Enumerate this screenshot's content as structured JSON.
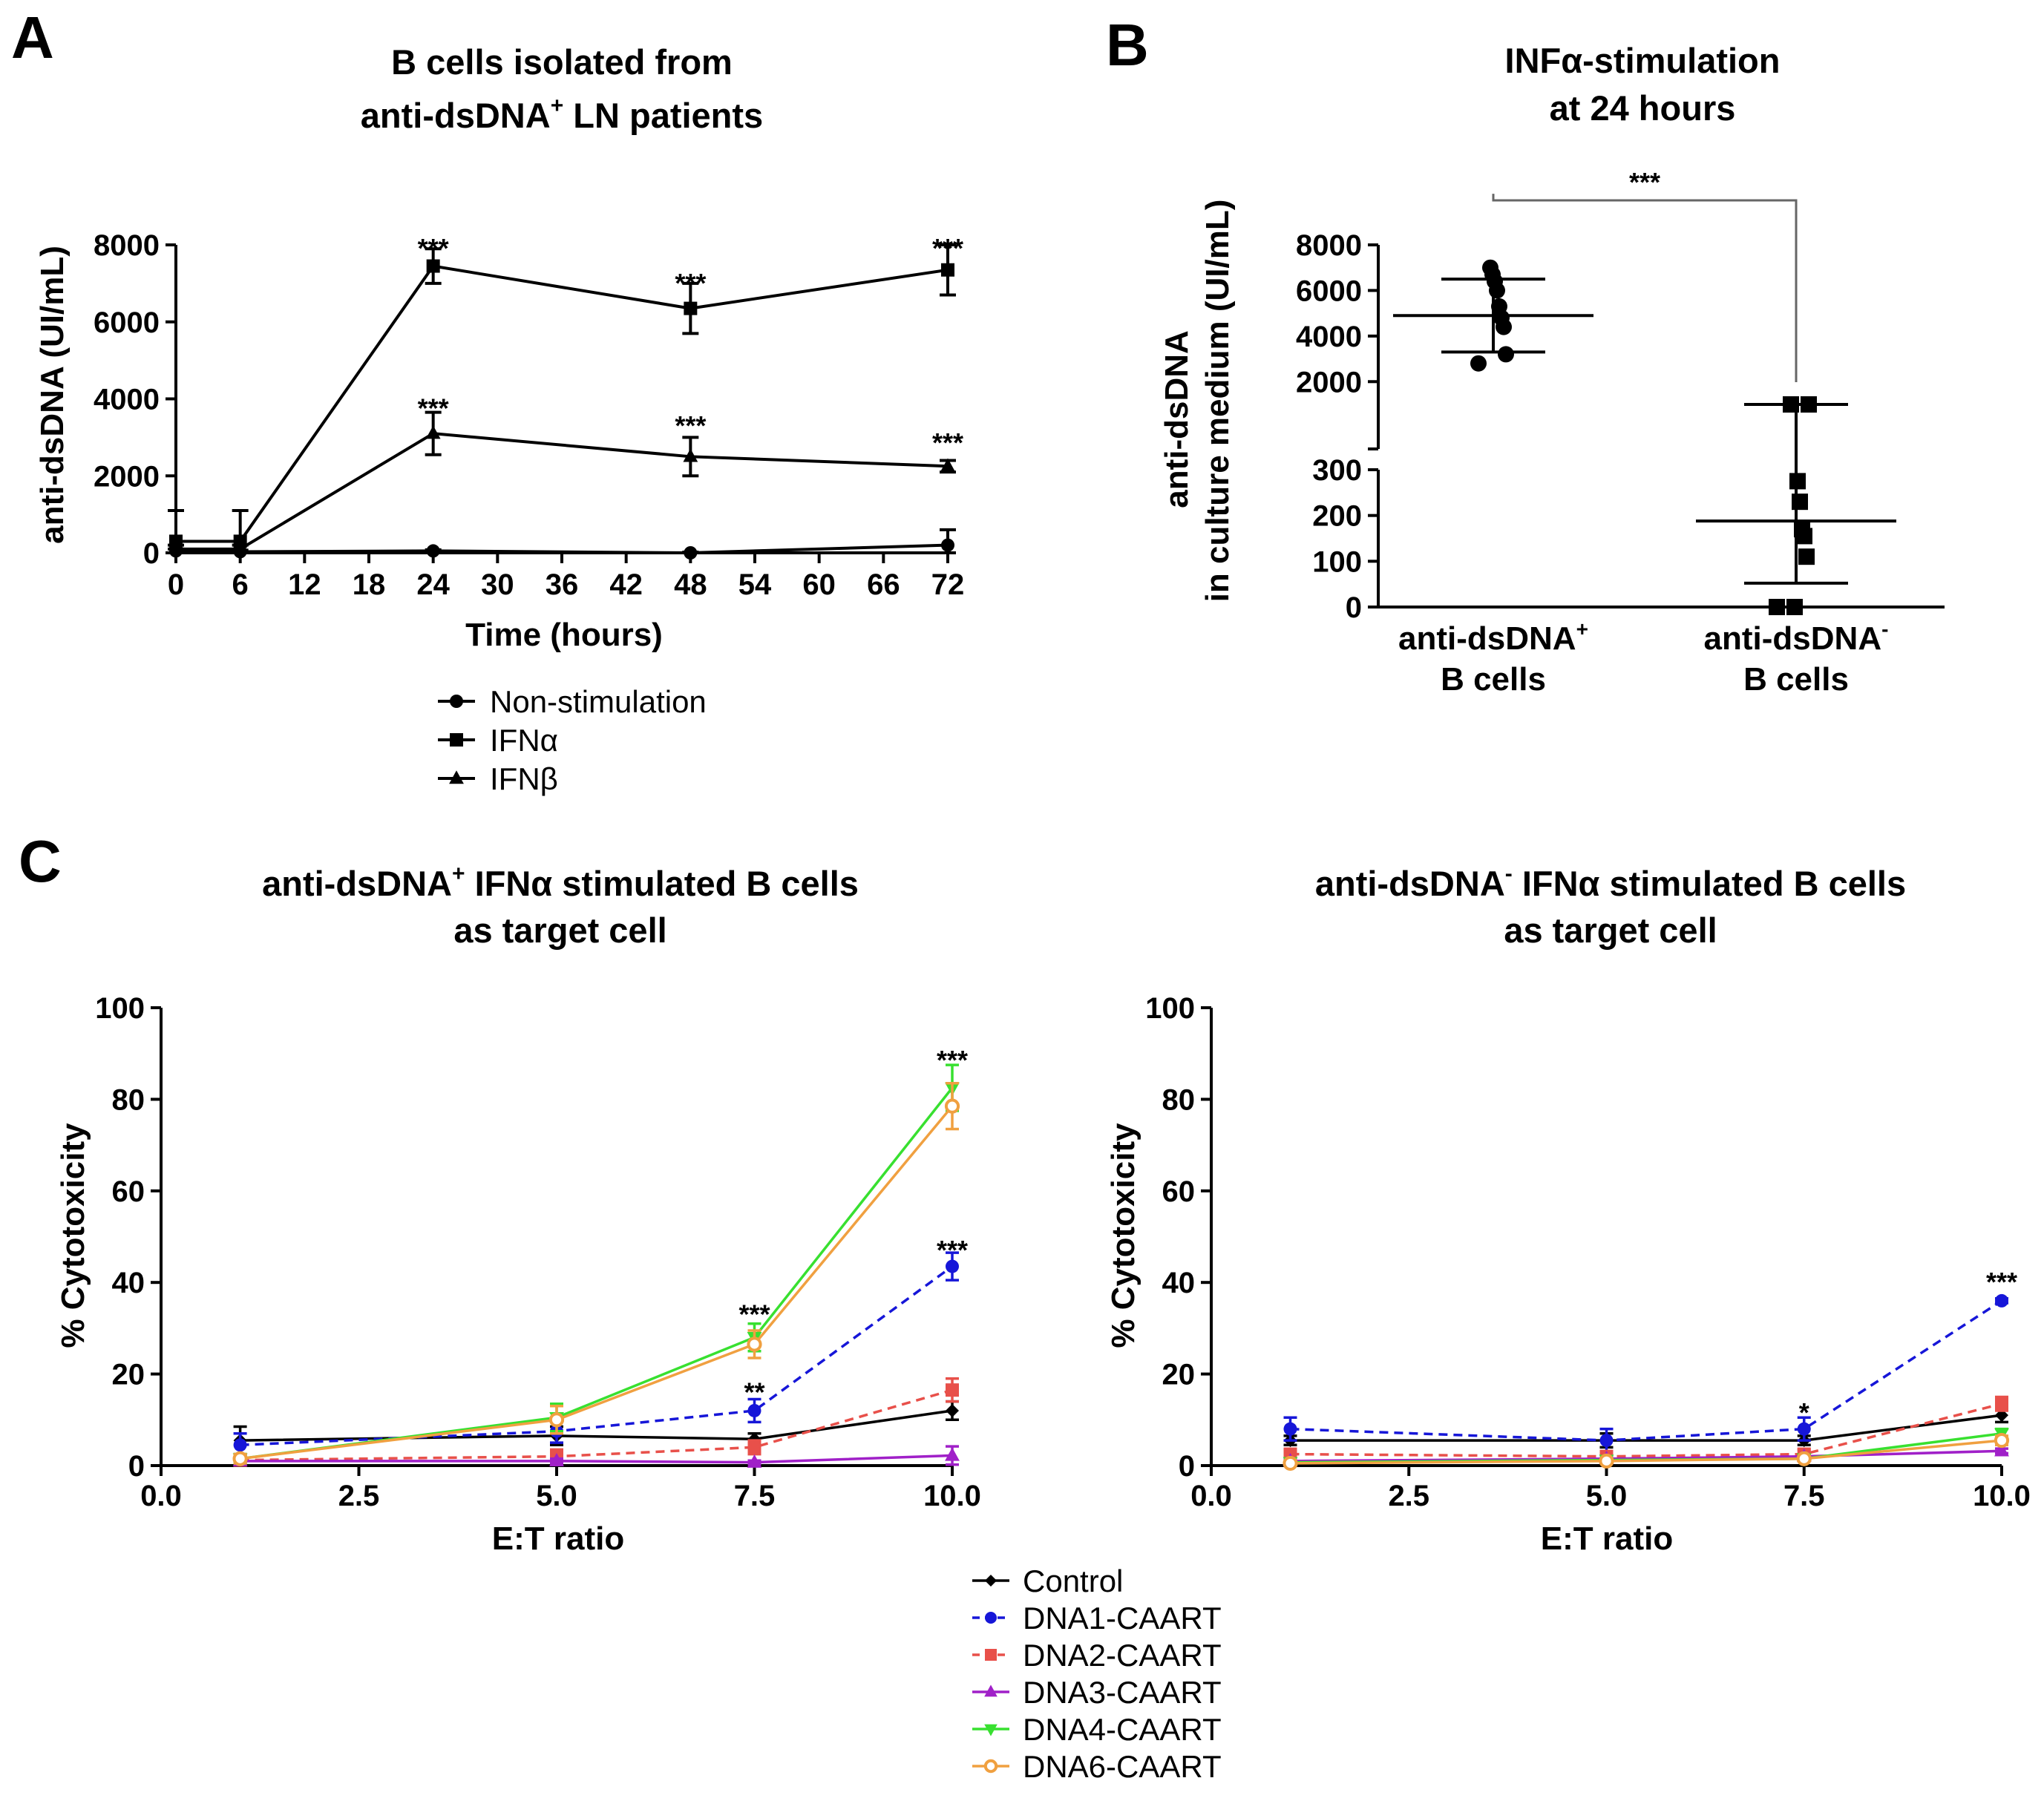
{
  "panels": {
    "A": {
      "label": "A",
      "title_line1": "B cells isolated from",
      "title_line2_pre": "anti-dsDNA",
      "title_line2_sup": "+",
      "title_line2_post": " LN patients",
      "ylabel": "anti-dsDNA  (UI/mL)",
      "xlabel": "Time (hours)",
      "legend": [
        "Non-stimulation",
        "IFNα",
        "IFNβ"
      ]
    },
    "B": {
      "label": "B",
      "title_line1": "INFα-stimulation",
      "title_line2": "at 24 hours",
      "ylabel_line1": "anti-dsDNA",
      "ylabel_line2": "in culture medium (UI/mL)",
      "cat1_pre": "anti-dsDNA",
      "cat1_sup": "+",
      "cat2_pre": "anti-dsDNA",
      "cat2_sup": "-",
      "cat_line2": "B cells",
      "bracket_label": "***"
    },
    "C": {
      "label": "C",
      "left_title_line1_pre": "anti-dsDNA",
      "left_title_line1_sup": "+",
      "left_title_line1_post": " IFNα stimulated B cells",
      "right_title_line1_pre": "anti-dsDNA",
      "right_title_line1_sup": "-",
      "right_title_line1_post": " IFNα stimulated B cells",
      "title_line2": "as target cell",
      "ylabel": "% Cytotoxicity",
      "xlabel": "E:T ratio",
      "legend": [
        "Control",
        "DNA1-CAART",
        "DNA2-CAART",
        "DNA3-CAART",
        "DNA4-CAART",
        "DNA6-CAART"
      ]
    }
  },
  "chart_data": [
    {
      "panel": "A",
      "type": "line",
      "xlabel": "Time (hours)",
      "ylabel": "anti-dsDNA  (UI/mL)",
      "xlim": [
        0,
        72
      ],
      "ylim": [
        0,
        8000
      ],
      "x_ticks": [
        0,
        6,
        12,
        18,
        24,
        30,
        36,
        42,
        48,
        54,
        60,
        66,
        72
      ],
      "y_ticks": [
        0,
        2000,
        4000,
        6000,
        8000
      ],
      "legend_position": "bottom",
      "series": [
        {
          "name": "Non-stimulation",
          "marker": "circle",
          "x": [
            0,
            6,
            24,
            48,
            72
          ],
          "y": [
            50,
            30,
            50,
            0,
            200
          ],
          "err": [
            50,
            40,
            30,
            20,
            400
          ]
        },
        {
          "name": "IFNα",
          "marker": "square",
          "x": [
            0,
            6,
            24,
            48,
            72
          ],
          "y": [
            300,
            300,
            7450,
            6350,
            7350
          ],
          "err": [
            800,
            800,
            450,
            650,
            650
          ]
        },
        {
          "name": "IFNβ",
          "marker": "triangle",
          "x": [
            0,
            6,
            24,
            48,
            72
          ],
          "y": [
            100,
            100,
            3100,
            2500,
            2250
          ],
          "err": [
            100,
            100,
            550,
            500,
            150
          ]
        }
      ],
      "annotations": [
        {
          "x": 24,
          "y": 7900,
          "text": "***"
        },
        {
          "x": 48,
          "y": 7000,
          "text": "***"
        },
        {
          "x": 72,
          "y": 7900,
          "text": "***"
        },
        {
          "x": 24,
          "y": 3750,
          "text": "***"
        },
        {
          "x": 48,
          "y": 3300,
          "text": "***"
        },
        {
          "x": 72,
          "y": 2850,
          "text": "***"
        }
      ]
    },
    {
      "panel": "B",
      "type": "scatter",
      "categories": [
        "anti-dsDNA+ B cells",
        "anti-dsDNA- B cells"
      ],
      "y_ticks_upper": [
        2000,
        4000,
        6000,
        8000
      ],
      "y_ticks_lower": [
        0,
        100,
        200,
        300
      ],
      "y_axis_break": [
        300,
        1000
      ],
      "groups": [
        {
          "category": "anti-dsDNA+ B cells",
          "marker": "circle",
          "values": [
            2800,
            3200,
            4400,
            4800,
            5300,
            6000,
            6400,
            6700,
            7000
          ],
          "mean": 4900,
          "sd_low": 3300,
          "sd_high": 6500
        },
        {
          "category": "anti-dsDNA- B cells",
          "marker": "square",
          "values": [
            0,
            0,
            110,
            155,
            170,
            230,
            275,
            1000,
            1000
          ],
          "mean": 188,
          "sd_low": 52,
          "sd_high": 1000
        }
      ],
      "comparison": {
        "from": "anti-dsDNA+ B cells",
        "to": "anti-dsDNA- B cells",
        "label": "***"
      }
    },
    {
      "panel": "C-left",
      "type": "line",
      "xlabel": "E:T ratio",
      "ylabel": "% Cytotoxicity",
      "xlim": [
        0,
        10
      ],
      "ylim": [
        0,
        100
      ],
      "x_ticks": [
        0.0,
        2.5,
        5.0,
        7.5,
        10.0
      ],
      "y_ticks": [
        0,
        20,
        40,
        60,
        80,
        100
      ],
      "series": [
        {
          "name": "Control",
          "color": "#000000",
          "dash": false,
          "marker": "diamond",
          "x": [
            1,
            5,
            7.5,
            10
          ],
          "y": [
            5.5,
            6.5,
            5.8,
            12
          ],
          "err": [
            3,
            2,
            1.2,
            2
          ]
        },
        {
          "name": "DNA1-CAART",
          "color": "#1616d8",
          "dash": true,
          "marker": "circle",
          "x": [
            1,
            5,
            7.5,
            10
          ],
          "y": [
            4.5,
            7.5,
            12,
            43.5
          ],
          "err": [
            2.5,
            2.5,
            2.5,
            3
          ]
        },
        {
          "name": "DNA2-CAART",
          "color": "#e8504a",
          "dash": true,
          "marker": "square",
          "x": [
            1,
            5,
            7.5,
            10
          ],
          "y": [
            1.2,
            2,
            4,
            16.5
          ],
          "err": [
            0.5,
            1.5,
            1.5,
            2.5
          ]
        },
        {
          "name": "DNA3-CAART",
          "color": "#a020c8",
          "dash": false,
          "marker": "triangle",
          "x": [
            1,
            5,
            7.5,
            10
          ],
          "y": [
            1,
            1,
            0.7,
            2.2
          ],
          "err": [
            0.5,
            0.5,
            0.4,
            2
          ]
        },
        {
          "name": "DNA4-CAART",
          "color": "#38e030",
          "dash": false,
          "marker": "triangle-down",
          "x": [
            1,
            5,
            7.5,
            10
          ],
          "y": [
            1.5,
            10.5,
            28,
            82.5
          ],
          "err": [
            1,
            3,
            3,
            5
          ]
        },
        {
          "name": "DNA6-CAART",
          "color": "#f0a040",
          "dash": false,
          "marker": "open-circle",
          "x": [
            1,
            5,
            7.5,
            10
          ],
          "y": [
            1.5,
            10,
            26.5,
            78.5
          ],
          "err": [
            1,
            3,
            3,
            5
          ]
        }
      ],
      "annotations": [
        {
          "x": 7.5,
          "y": 33,
          "text": "***"
        },
        {
          "x": 7.5,
          "y": 16,
          "text": "**"
        },
        {
          "x": 10,
          "y": 88.5,
          "text": "***"
        },
        {
          "x": 10,
          "y": 47,
          "text": "***"
        }
      ]
    },
    {
      "panel": "C-right",
      "type": "line",
      "xlabel": "E:T ratio",
      "ylabel": "% Cytotoxicity",
      "xlim": [
        0,
        10
      ],
      "ylim": [
        0,
        100
      ],
      "x_ticks": [
        0.0,
        2.5,
        5.0,
        7.5,
        10.0
      ],
      "y_ticks": [
        0,
        20,
        40,
        60,
        80,
        100
      ],
      "series": [
        {
          "name": "Control",
          "color": "#000000",
          "dash": false,
          "marker": "diamond",
          "x": [
            1,
            5,
            7.5,
            10
          ],
          "y": [
            5.5,
            5.5,
            5.5,
            11
          ],
          "err": [
            1,
            1.5,
            1,
            1.5
          ]
        },
        {
          "name": "DNA1-CAART",
          "color": "#1616d8",
          "dash": true,
          "marker": "circle",
          "x": [
            1,
            5,
            7.5,
            10
          ],
          "y": [
            8,
            5.5,
            8,
            36
          ],
          "err": [
            2.5,
            2.5,
            2.5,
            0.5
          ]
        },
        {
          "name": "DNA2-CAART",
          "color": "#e8504a",
          "dash": true,
          "marker": "square",
          "x": [
            1,
            5,
            7.5,
            10
          ],
          "y": [
            2.5,
            2,
            2.5,
            13.5
          ],
          "err": [
            1,
            0.5,
            1,
            1.5
          ]
        },
        {
          "name": "DNA3-CAART",
          "color": "#a020c8",
          "dash": false,
          "marker": "triangle",
          "x": [
            1,
            5,
            7.5,
            10
          ],
          "y": [
            1,
            1.5,
            2,
            3.2
          ],
          "err": [
            0.3,
            0.3,
            0.3,
            0.5
          ]
        },
        {
          "name": "DNA4-CAART",
          "color": "#38e030",
          "dash": false,
          "marker": "triangle-down",
          "x": [
            1,
            5,
            7.5,
            10
          ],
          "y": [
            0.7,
            1.2,
            1.5,
            7
          ],
          "err": [
            0.3,
            0.3,
            0.3,
            1
          ]
        },
        {
          "name": "DNA6-CAART",
          "color": "#f0a040",
          "dash": false,
          "marker": "open-circle",
          "x": [
            1,
            5,
            7.5,
            10
          ],
          "y": [
            0.5,
            1,
            1.5,
            5.5
          ],
          "err": [
            0.3,
            0.3,
            0.3,
            1
          ]
        }
      ],
      "annotations": [
        {
          "x": 7.5,
          "y": 11.5,
          "text": "*"
        },
        {
          "x": 10,
          "y": 40,
          "text": "***"
        }
      ]
    }
  ]
}
